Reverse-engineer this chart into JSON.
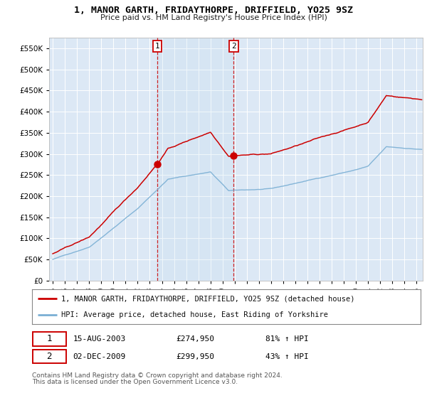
{
  "title": "1, MANOR GARTH, FRIDAYTHORPE, DRIFFIELD, YO25 9SZ",
  "subtitle": "Price paid vs. HM Land Registry's House Price Index (HPI)",
  "legend_line1": "1, MANOR GARTH, FRIDAYTHORPE, DRIFFIELD, YO25 9SZ (detached house)",
  "legend_line2": "HPI: Average price, detached house, East Riding of Yorkshire",
  "transaction1_date": "15-AUG-2003",
  "transaction1_price": 274950,
  "transaction1_label": "£274,950",
  "transaction1_pct": "81% ↑ HPI",
  "transaction2_date": "02-DEC-2009",
  "transaction2_price": 299950,
  "transaction2_label": "£299,950",
  "transaction2_pct": "43% ↑ HPI",
  "footnote1": "Contains HM Land Registry data © Crown copyright and database right 2024.",
  "footnote2": "This data is licensed under the Open Government Licence v3.0.",
  "background_color": "#ffffff",
  "plot_bg_color": "#dce8f5",
  "grid_color": "#ffffff",
  "red_line_color": "#cc0000",
  "blue_line_color": "#7aafd4",
  "vline_color": "#cc0000",
  "ylim": [
    0,
    575000
  ],
  "yticks": [
    0,
    50000,
    100000,
    150000,
    200000,
    250000,
    300000,
    350000,
    400000,
    450000,
    500000,
    550000
  ],
  "t1_year_float": 2003.625,
  "t2_year_float": 2009.917,
  "t1_prop_val": 274950,
  "t2_prop_val": 299950
}
